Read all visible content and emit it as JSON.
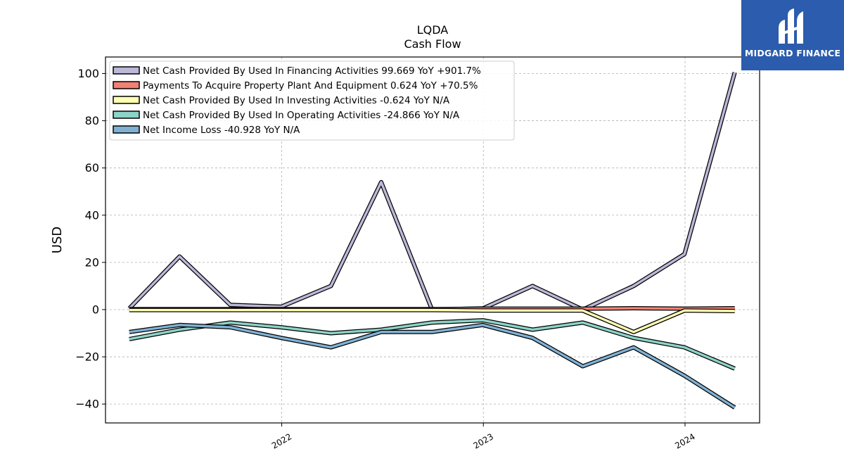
{
  "chart_data": {
    "type": "line",
    "title": "LQDA",
    "subtitle": "Cash Flow",
    "ylabel": "USD",
    "xlabel": "",
    "ylim": [
      -48,
      107
    ],
    "yticks": [
      -40,
      -20,
      0,
      20,
      40,
      60,
      80,
      100
    ],
    "ytick_labels": [
      "−40",
      "−20",
      "0",
      "20",
      "40",
      "60",
      "80",
      "100"
    ],
    "xlim": [
      "2021-02-16",
      "2024-05-15"
    ],
    "xticks": [
      {
        "date": "2022-01-01",
        "label": "2022"
      },
      {
        "date": "2023-01-01",
        "label": "2023"
      },
      {
        "date": "2024-01-01",
        "label": "2024"
      }
    ],
    "dates": [
      "2021-03-31",
      "2021-06-30",
      "2021-09-30",
      "2021-12-31",
      "2022-03-31",
      "2022-06-30",
      "2022-09-30",
      "2022-12-31",
      "2023-03-31",
      "2023-06-30",
      "2023-09-30",
      "2023-12-31",
      "2024-03-31"
    ],
    "grid": true,
    "legend_position": "top-left",
    "series": [
      {
        "name": "Net Cash Provided By Used In Financing Activities",
        "legend_label": "Net Cash Provided By Used In Financing Activities  99.669 YoY +901.7%",
        "color": "#bcb8d9",
        "values": [
          0.5,
          22.5,
          2.0,
          1.2,
          10.0,
          54.0,
          0.0,
          0.5,
          10.0,
          0.0,
          10.0,
          23.5,
          100.5
        ]
      },
      {
        "name": "Payments To Acquire Property Plant And Equipment",
        "legend_label": "Payments To Acquire Property Plant And Equipment  0.624 YoY +70.5%",
        "color": "#f28072",
        "values": [
          0.2,
          0.2,
          0.2,
          0.2,
          0.2,
          0.2,
          0.2,
          0.4,
          0.4,
          0.4,
          0.6,
          0.4,
          0.6
        ]
      },
      {
        "name": "Net Cash Provided By Used In Investing Activities",
        "legend_label": "Net Cash Provided By Used In Investing Activities  -0.624 YoY N/A",
        "color": "#ffffb4",
        "values": [
          -0.2,
          -0.2,
          -0.2,
          -0.2,
          -0.2,
          -0.2,
          -0.2,
          -0.4,
          -0.4,
          -0.4,
          -9.5,
          -0.4,
          -0.6
        ]
      },
      {
        "name": "Net Cash Provided By Used In Operating Activities",
        "legend_label": "Net Cash Provided By Used In Operating Activities  -24.866 YoY N/A",
        "color": "#8dd3c7",
        "values": [
          -12.5,
          -8.5,
          -5.5,
          -7.5,
          -10.0,
          -8.5,
          -5.5,
          -4.5,
          -8.5,
          -5.5,
          -12.0,
          -16.0,
          -25.0
        ]
      },
      {
        "name": "Net Income Loss",
        "legend_label": "Net Income Loss  -40.928 YoY N/A",
        "color": "#80b1d3",
        "values": [
          -9.5,
          -6.5,
          -7.5,
          -12.0,
          -16.0,
          -9.5,
          -9.5,
          -6.5,
          -12.0,
          -24.0,
          -16.0,
          -28.0,
          -41.5
        ]
      }
    ]
  },
  "branding": {
    "name": "MIDGARD FINANCE",
    "background_color": "#2b5cad",
    "icon": "midgard-logo-icon"
  }
}
